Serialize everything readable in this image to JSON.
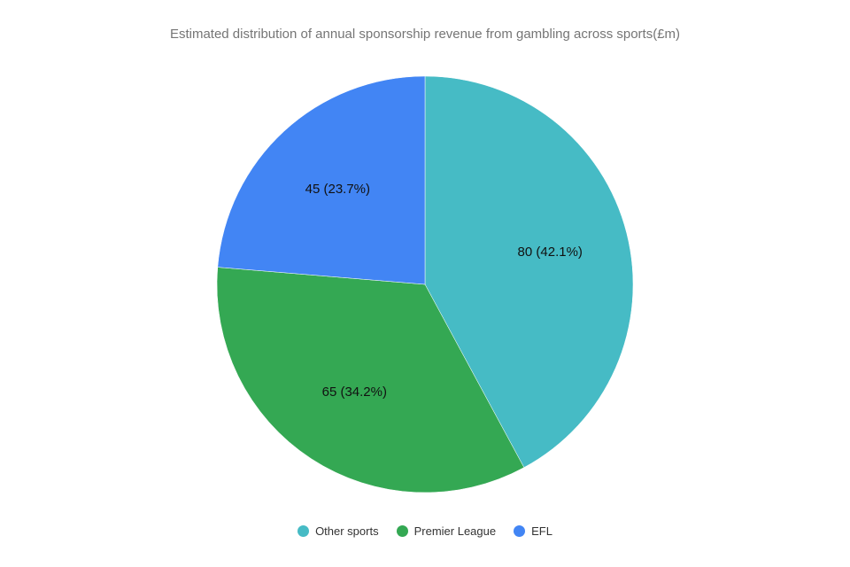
{
  "chart_data": {
    "type": "pie",
    "title": "Estimated distribution of annual sponsorship revenue from gambling across sports(£m)",
    "slices": [
      {
        "name": "Other sports",
        "value": 80,
        "label": "80 (42.1%)",
        "color": "#46BBC5"
      },
      {
        "name": "Premier League",
        "value": 65,
        "label": "65 (34.2%)",
        "color": "#34A853"
      },
      {
        "name": "EFL",
        "value": 45,
        "label": "45 (23.7%)",
        "color": "#4285F4"
      }
    ],
    "legend": "bottom"
  }
}
